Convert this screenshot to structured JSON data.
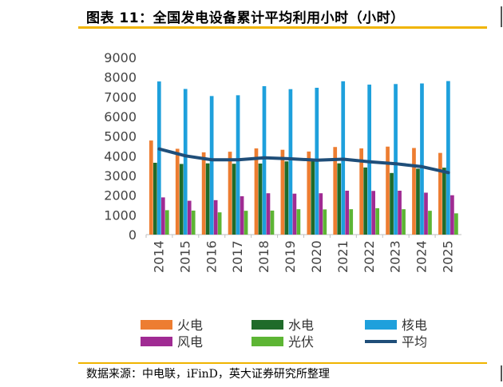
{
  "title": "图表 11：全国发电设备累计平均利用小时（小时）",
  "source": "数据来源：中电联，iFinD，英大证券研究所整理",
  "chart_data": {
    "type": "bar",
    "categories": [
      "2014",
      "2015",
      "2016",
      "2017",
      "2018",
      "2019",
      "2020",
      "2021",
      "2022",
      "2023",
      "2024",
      "2025"
    ],
    "ylim": [
      0,
      9000
    ],
    "yticks": [
      0,
      1000,
      2000,
      3000,
      4000,
      5000,
      6000,
      7000,
      8000,
      9000
    ],
    "series": [
      {
        "name": "火电",
        "color": "#ed7d31",
        "values": [
          4780,
          4360,
          4180,
          4210,
          4380,
          4310,
          4220,
          4450,
          4380,
          4470,
          4400,
          4150
        ]
      },
      {
        "name": "水电",
        "color": "#1f6b2a",
        "values": [
          3650,
          3590,
          3620,
          3600,
          3610,
          3720,
          3830,
          3620,
          3410,
          3130,
          3350,
          3400
        ]
      },
      {
        "name": "核电",
        "color": "#1ea0dc",
        "values": [
          7780,
          7400,
          7040,
          7080,
          7540,
          7390,
          7460,
          7790,
          7620,
          7650,
          7680,
          7800
        ]
      },
      {
        "name": "风电",
        "color": "#a02b93",
        "values": [
          1890,
          1720,
          1750,
          1950,
          2100,
          2080,
          2100,
          2230,
          2220,
          2230,
          2130,
          2000
        ]
      },
      {
        "name": "光伏",
        "color": "#5db534",
        "values": [
          1240,
          1220,
          1130,
          1210,
          1220,
          1290,
          1280,
          1290,
          1340,
          1290,
          1210,
          1080
        ]
      }
    ],
    "line": {
      "name": "平均",
      "color": "#1f4e79",
      "values": [
        4350,
        4000,
        3800,
        3800,
        3900,
        3850,
        3780,
        3830,
        3700,
        3600,
        3450,
        3150
      ]
    }
  }
}
